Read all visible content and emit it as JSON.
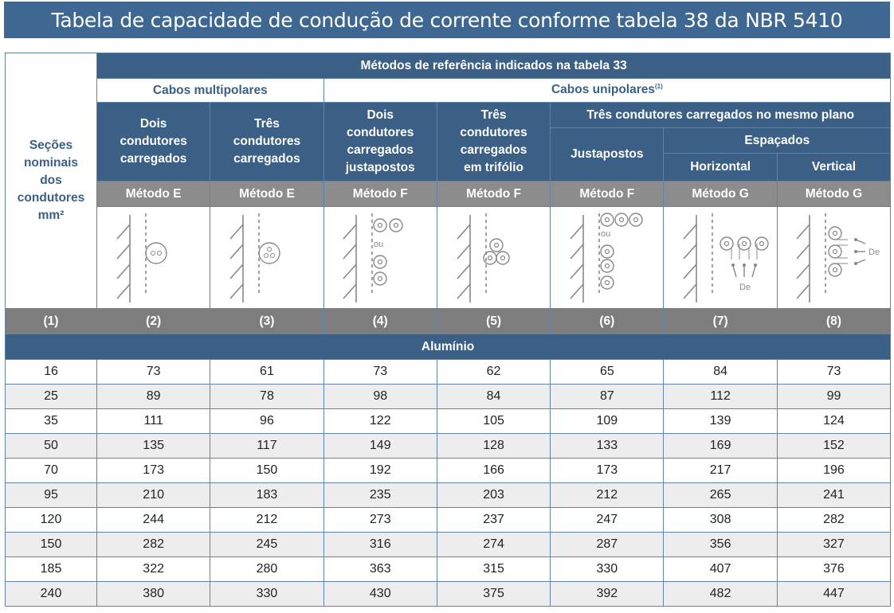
{
  "title": "Tabela de capacidade de condução de corrente conforme tabela 38 da NBR 5410",
  "header": {
    "side_label": "Seções nominais dos condutores mm²",
    "methods_title": "Métodos de referência indicados na tabela 33",
    "multipolar": "Cabos multipolares",
    "unipolar": "Cabos unipolares",
    "unipolar_note": "(1)",
    "columns": [
      "Dois condutores carregados",
      "Três condutores carregados",
      "Dois condutores carregados justapostos",
      "Três condutores carregados em trifólio"
    ],
    "same_plane": "Três condutores carregados no mesmo plano",
    "justapostos": "Justapostos",
    "espacados": "Espaçados",
    "horizontal": "Horizontal",
    "vertical": "Vertical",
    "methods": [
      "Método E",
      "Método E",
      "Método F",
      "Método F",
      "Método F",
      "Método G",
      "Método G"
    ],
    "icon_labels": {
      "ou": "ou",
      "de": "De"
    },
    "column_numbers": [
      "(1)",
      "(2)",
      "(3)",
      "(4)",
      "(5)",
      "(6)",
      "(7)",
      "(8)"
    ]
  },
  "section_label": "Alumínio",
  "rows": [
    [
      "16",
      "73",
      "61",
      "73",
      "62",
      "65",
      "84",
      "73"
    ],
    [
      "25",
      "89",
      "78",
      "98",
      "84",
      "87",
      "112",
      "99"
    ],
    [
      "35",
      "111",
      "96",
      "122",
      "105",
      "109",
      "139",
      "124"
    ],
    [
      "50",
      "135",
      "117",
      "149",
      "128",
      "133",
      "169",
      "152"
    ],
    [
      "70",
      "173",
      "150",
      "192",
      "166",
      "173",
      "217",
      "196"
    ],
    [
      "95",
      "210",
      "183",
      "235",
      "203",
      "212",
      "265",
      "241"
    ],
    [
      "120",
      "244",
      "212",
      "273",
      "237",
      "247",
      "308",
      "282"
    ],
    [
      "150",
      "282",
      "245",
      "316",
      "274",
      "287",
      "356",
      "327"
    ],
    [
      "185",
      "322",
      "280",
      "363",
      "315",
      "330",
      "407",
      "376"
    ],
    [
      "240",
      "380",
      "330",
      "430",
      "375",
      "392",
      "482",
      "447"
    ]
  ],
  "colors": {
    "header_blue": "#3b5f85",
    "title_blue": "#3e6891",
    "method_gray": "#8c8c8c",
    "stripe": "#ededed"
  }
}
